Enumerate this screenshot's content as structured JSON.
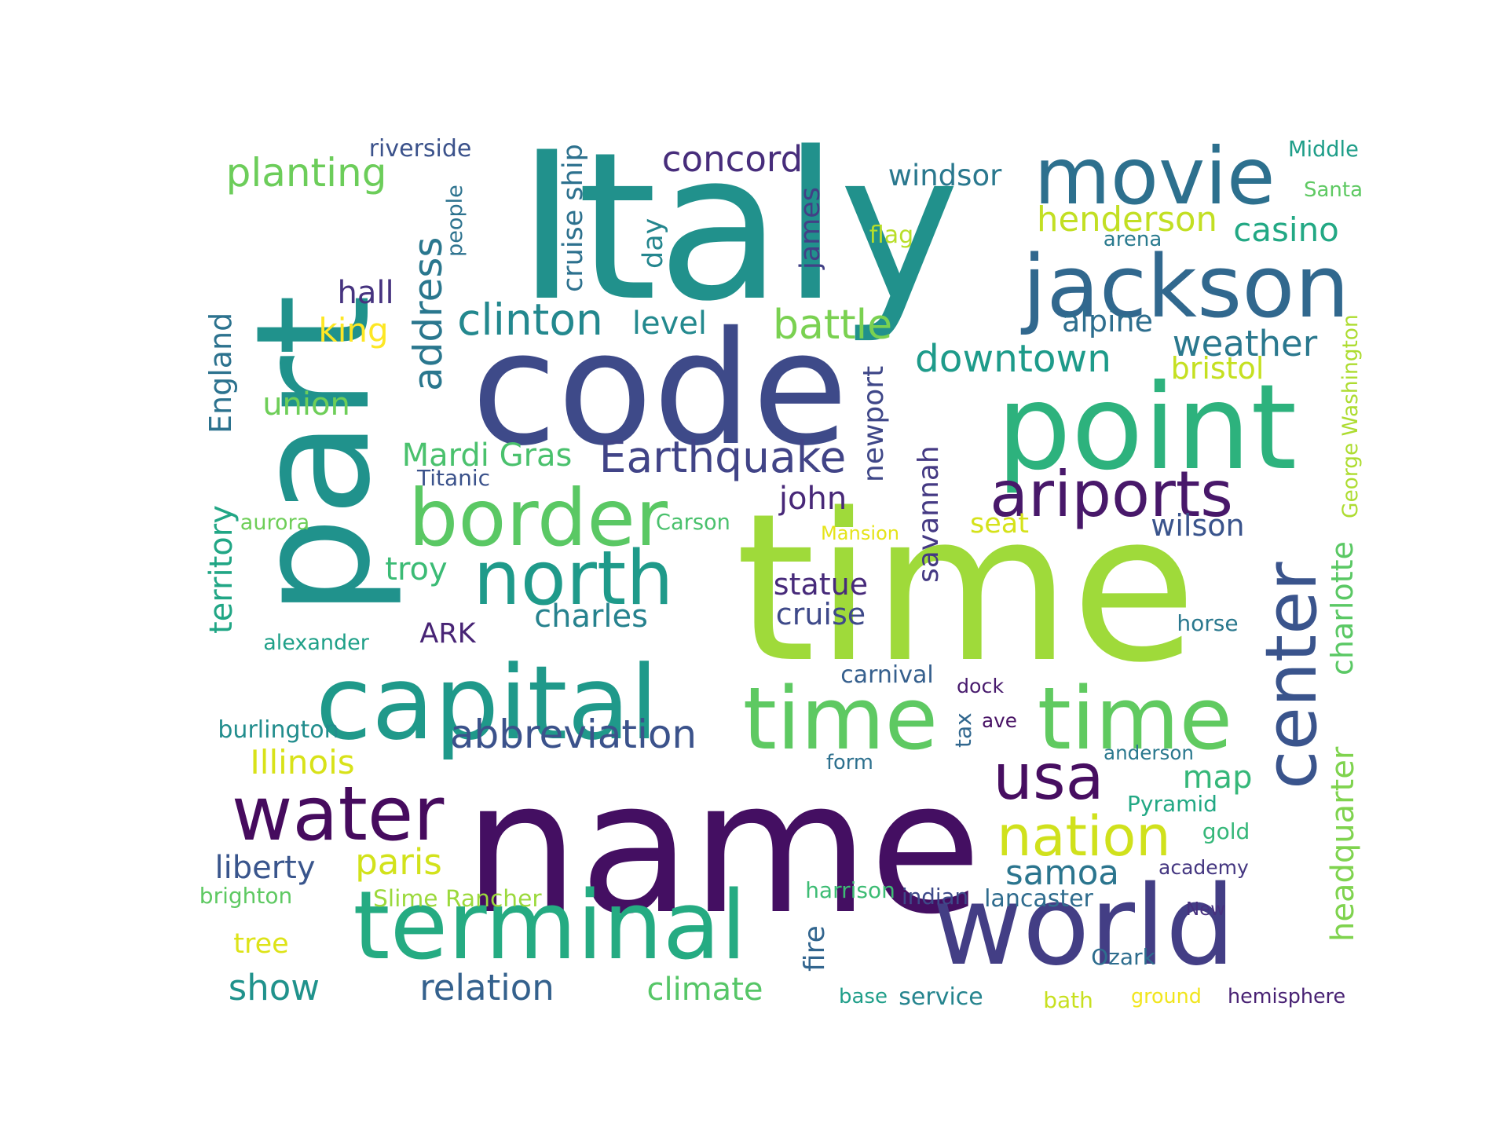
{
  "words": [
    {
      "text": "Italy",
      "color": "#21918c",
      "orient": "h"
    },
    {
      "text": "name",
      "color": "#440f62",
      "orient": "h"
    },
    {
      "text": "time",
      "color": "#9fda3a",
      "orient": "h"
    },
    {
      "text": "part",
      "color": "#20928c",
      "orient": "v"
    },
    {
      "text": "code",
      "color": "#3e4a89",
      "orient": "h"
    },
    {
      "text": "point",
      "color": "#2db27d",
      "orient": "h"
    },
    {
      "text": "capital",
      "color": "#1f998a",
      "orient": "h"
    },
    {
      "text": "terminal",
      "color": "#25ab82",
      "orient": "h"
    },
    {
      "text": "world",
      "color": "#433e85",
      "orient": "h"
    },
    {
      "text": "center",
      "color": "#3a548c",
      "orient": "v"
    },
    {
      "text": "time",
      "color": "#5ec962",
      "orient": "h"
    },
    {
      "text": "time",
      "color": "#60ca60",
      "orient": "h"
    },
    {
      "text": "movie",
      "color": "#2d708e",
      "orient": "h"
    },
    {
      "text": "jackson",
      "color": "#31688e",
      "orient": "h"
    },
    {
      "text": "water",
      "color": "#460b5e",
      "orient": "h"
    },
    {
      "text": "border",
      "color": "#5ac864",
      "orient": "h"
    },
    {
      "text": "north",
      "color": "#1f9a8a",
      "orient": "h"
    },
    {
      "text": "usa",
      "color": "#470e61",
      "orient": "h"
    },
    {
      "text": "address",
      "color": "#2a778e",
      "orient": "v"
    },
    {
      "text": "ariports",
      "color": "#48186a",
      "orient": "h"
    },
    {
      "text": "nation",
      "color": "#d0e11c",
      "orient": "h"
    },
    {
      "text": "Earthquake",
      "color": "#414487",
      "orient": "h"
    },
    {
      "text": "clinton",
      "color": "#23888e",
      "orient": "h"
    },
    {
      "text": "planting",
      "color": "#6ccd5a",
      "orient": "h"
    },
    {
      "text": "battle",
      "color": "#7ad151",
      "orient": "h"
    },
    {
      "text": "downtown",
      "color": "#1e9b8a",
      "orient": "h"
    },
    {
      "text": "abbreviation",
      "color": "#3b528b",
      "orient": "h"
    },
    {
      "text": "England",
      "color": "#2c728e",
      "orient": "v"
    },
    {
      "text": "territory",
      "color": "#21a685",
      "orient": "v"
    },
    {
      "text": "charlotte",
      "color": "#5ac864",
      "orient": "v"
    },
    {
      "text": "headquarter",
      "color": "#7fd34e",
      "orient": "v"
    },
    {
      "text": "concord",
      "color": "#472d7b",
      "orient": "h"
    },
    {
      "text": "paris",
      "color": "#d2e21b",
      "orient": "h"
    },
    {
      "text": "weather",
      "color": "#2a788e",
      "orient": "h"
    },
    {
      "text": "henderson",
      "color": "#c2df23",
      "orient": "h"
    },
    {
      "text": "casino",
      "color": "#22a884",
      "orient": "h"
    },
    {
      "text": "Mardi Gras",
      "color": "#4ac16d",
      "orient": "h"
    },
    {
      "text": "Illinois",
      "color": "#d8e219",
      "orient": "h"
    },
    {
      "text": "relation",
      "color": "#34618d",
      "orient": "h"
    },
    {
      "text": "climate",
      "color": "#56c667",
      "orient": "h"
    },
    {
      "text": "samoa",
      "color": "#2b758e",
      "orient": "h"
    },
    {
      "text": "john",
      "color": "#482878",
      "orient": "h"
    },
    {
      "text": "savannah",
      "color": "#443983",
      "orient": "v"
    },
    {
      "text": "show",
      "color": "#20928c",
      "orient": "h"
    },
    {
      "text": "map",
      "color": "#35b779",
      "orient": "h"
    },
    {
      "text": "newport",
      "color": "#3f4788",
      "orient": "v"
    },
    {
      "text": "charles",
      "color": "#26828e",
      "orient": "h"
    },
    {
      "text": "liberty",
      "color": "#39558c",
      "orient": "h"
    },
    {
      "text": "statue",
      "color": "#472a7a",
      "orient": "h"
    },
    {
      "text": "cruise",
      "color": "#3e4989",
      "orient": "h"
    },
    {
      "text": "windsor",
      "color": "#2a788e",
      "orient": "h"
    },
    {
      "text": "bristol",
      "color": "#c5e021",
      "orient": "h"
    },
    {
      "text": "wilson",
      "color": "#3a548c",
      "orient": "h"
    },
    {
      "text": "alpine",
      "color": "#2e6e8e",
      "orient": "h"
    },
    {
      "text": "king",
      "color": "#fde725",
      "orient": "h"
    },
    {
      "text": "hall",
      "color": "#46337f",
      "orient": "h"
    },
    {
      "text": "union",
      "color": "#6ece58",
      "orient": "h"
    },
    {
      "text": "level",
      "color": "#23898e",
      "orient": "h"
    },
    {
      "text": "day",
      "color": "#24868e",
      "orient": "v"
    },
    {
      "text": "james",
      "color": "#424086",
      "orient": "v"
    },
    {
      "text": "fire",
      "color": "#32658e",
      "orient": "v"
    },
    {
      "text": "troy",
      "color": "#3bbb75",
      "orient": "h"
    },
    {
      "text": "seat",
      "color": "#d5e21a",
      "orient": "h"
    },
    {
      "text": "ARK",
      "color": "#482475",
      "orient": "h"
    },
    {
      "text": "tree",
      "color": "#dde318",
      "orient": "h"
    },
    {
      "text": "cruise ship",
      "color": "#2d718e",
      "orient": "v"
    },
    {
      "text": "George Washington",
      "color": "#addc30",
      "orient": "v"
    },
    {
      "text": "riverside",
      "color": "#3b528b",
      "orient": "h"
    },
    {
      "text": "Middle",
      "color": "#1f9e89",
      "orient": "h"
    },
    {
      "text": "Santa",
      "color": "#5ec962",
      "orient": "h"
    },
    {
      "text": "people",
      "color": "#2c728e",
      "orient": "v"
    },
    {
      "text": "flag",
      "color": "#b8de29",
      "orient": "h"
    },
    {
      "text": "arena",
      "color": "#297a8e",
      "orient": "h"
    },
    {
      "text": "Titanic",
      "color": "#3b528b",
      "orient": "h"
    },
    {
      "text": "aurora",
      "color": "#6ece58",
      "orient": "h"
    },
    {
      "text": "Carson",
      "color": "#4ac16d",
      "orient": "h"
    },
    {
      "text": "Mansion",
      "color": "#e5e419",
      "orient": "h"
    },
    {
      "text": "horse",
      "color": "#2a788e",
      "orient": "h"
    },
    {
      "text": "alexander",
      "color": "#1fa088",
      "orient": "h"
    },
    {
      "text": "burlington",
      "color": "#228d8d",
      "orient": "h"
    },
    {
      "text": "carnival",
      "color": "#355f8d",
      "orient": "h"
    },
    {
      "text": "dock",
      "color": "#481b6d",
      "orient": "h"
    },
    {
      "text": "ave",
      "color": "#471164",
      "orient": "h"
    },
    {
      "text": "tax",
      "color": "#31678e",
      "orient": "v"
    },
    {
      "text": "form",
      "color": "#2d708e",
      "orient": "h"
    },
    {
      "text": "anderson",
      "color": "#2a788e",
      "orient": "h"
    },
    {
      "text": "Pyramid",
      "color": "#22a884",
      "orient": "h"
    },
    {
      "text": "gold",
      "color": "#35b779",
      "orient": "h"
    },
    {
      "text": "academy",
      "color": "#453781",
      "orient": "h"
    },
    {
      "text": "brighton",
      "color": "#5ec962",
      "orient": "h"
    },
    {
      "text": "Slime Rancher",
      "color": "#9bd93c",
      "orient": "h"
    },
    {
      "text": "harrison",
      "color": "#3dbc74",
      "orient": "h"
    },
    {
      "text": "indian",
      "color": "#3e4a89",
      "orient": "h"
    },
    {
      "text": "lancaster",
      "color": "#2f6c8e",
      "orient": "h"
    },
    {
      "text": "New",
      "color": "#46307e",
      "orient": "h"
    },
    {
      "text": "Ozark",
      "color": "#2e6d8e",
      "orient": "h"
    },
    {
      "text": "base",
      "color": "#1f9e89",
      "orient": "h"
    },
    {
      "text": "service",
      "color": "#25848e",
      "orient": "h"
    },
    {
      "text": "bath",
      "color": "#c8e020",
      "orient": "h"
    },
    {
      "text": "ground",
      "color": "#f1e51d",
      "orient": "h"
    },
    {
      "text": "hemisphere",
      "color": "#482173",
      "orient": "h"
    }
  ]
}
